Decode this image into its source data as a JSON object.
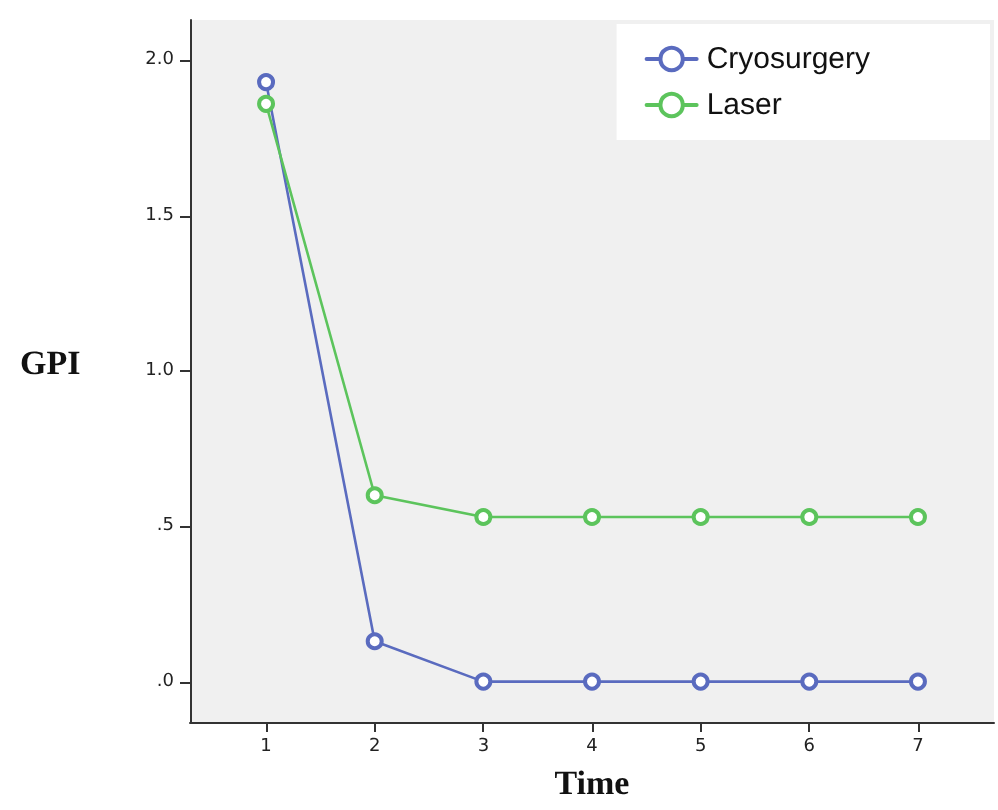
{
  "chart_data": {
    "type": "line",
    "xlabel": "Time",
    "ylabel": "GPI",
    "x": [
      1,
      2,
      3,
      4,
      5,
      6,
      7
    ],
    "series": [
      {
        "name": "Cryosurgery",
        "color": "#5a6bbf",
        "values": [
          1.93,
          0.13,
          0,
          0,
          0,
          0,
          0
        ]
      },
      {
        "name": "Laser",
        "color": "#5cc45c",
        "values": [
          1.86,
          0.6,
          0.53,
          0.53,
          0.53,
          0.53,
          0.53
        ]
      }
    ],
    "xlim": [
      0.3,
      7.7
    ],
    "xticks": [
      1,
      2,
      3,
      4,
      5,
      6,
      7
    ],
    "ylim": [
      -0.13,
      2.13
    ],
    "yticks": [
      {
        "value": 0,
        "label": ".0"
      },
      {
        "value": 0.5,
        "label": ".5"
      },
      {
        "value": 1,
        "label": "1.0"
      },
      {
        "value": 1.5,
        "label": "1.5"
      },
      {
        "value": 2,
        "label": "2.0"
      }
    ],
    "marker": "circle",
    "line_style": "solid",
    "legend": "top right",
    "grid": false
  }
}
